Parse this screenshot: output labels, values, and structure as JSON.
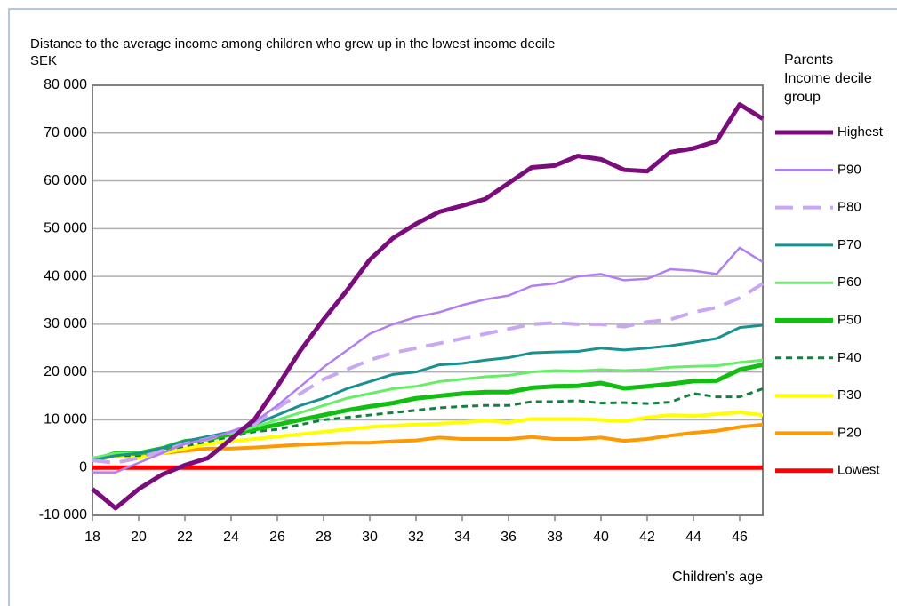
{
  "chart_data": {
    "type": "line",
    "title": "Distance to the average income among children who grew up in the lowest income decile",
    "y_label": "SEK",
    "x_label": "Children’s age",
    "legend_title": [
      "Parents",
      "Income decile",
      "group"
    ],
    "x": [
      18,
      19,
      20,
      21,
      22,
      23,
      24,
      25,
      26,
      27,
      28,
      29,
      30,
      31,
      32,
      33,
      34,
      35,
      36,
      37,
      38,
      39,
      40,
      41,
      42,
      43,
      44,
      45,
      46,
      47
    ],
    "xlim": [
      18,
      47
    ],
    "xticks": [
      18,
      20,
      22,
      24,
      26,
      28,
      30,
      32,
      34,
      36,
      38,
      40,
      42,
      44,
      46
    ],
    "ylim": [
      -10000,
      80000
    ],
    "yticks": [
      {
        "value": -10000,
        "label": "-10 000"
      },
      0,
      {
        "value": 10000,
        "label": "10 000"
      },
      {
        "value": 20000,
        "label": "20 000"
      },
      {
        "value": 30000,
        "label": "30 000"
      },
      {
        "value": 40000,
        "label": "40 000"
      },
      {
        "value": 50000,
        "label": "50 000"
      },
      {
        "value": 60000,
        "label": "60 000"
      },
      {
        "value": 70000,
        "label": "70 000"
      },
      {
        "value": 80000,
        "label": "80 000"
      }
    ],
    "grid": true,
    "legend": "right",
    "series": [
      {
        "name": "Highest",
        "color": "#7b0c7b",
        "linewidth": 5,
        "style": "solid",
        "values": [
          -4500,
          -8500,
          -4500,
          -1500,
          500,
          2000,
          6000,
          10000,
          17000,
          24500,
          31000,
          37000,
          43500,
          48000,
          51000,
          53500,
          54800,
          56200,
          59500,
          62800,
          63200,
          65200,
          64500,
          62300,
          62000,
          66000,
          66800,
          68300,
          76000,
          73000
        ]
      },
      {
        "name": "P90",
        "color": "#b07ef0",
        "linewidth": 2.5,
        "style": "solid",
        "values": [
          -1000,
          -1000,
          1000,
          3000,
          5000,
          6000,
          7500,
          9500,
          13000,
          17000,
          21000,
          24500,
          28000,
          30000,
          31500,
          32500,
          34000,
          35200,
          36000,
          38000,
          38500,
          40000,
          40500,
          39200,
          39500,
          41500,
          41200,
          40500,
          46000,
          43000
        ]
      },
      {
        "name": "P80",
        "color": "#c8a8f2",
        "linewidth": 4,
        "style": "dashed",
        "values": [
          1500,
          1000,
          2000,
          3500,
          5000,
          6000,
          7500,
          9000,
          12500,
          15500,
          18500,
          20500,
          22500,
          24000,
          25000,
          26000,
          27000,
          28000,
          29000,
          30000,
          30300,
          30000,
          30000,
          29500,
          30500,
          31000,
          32500,
          33500,
          35500,
          38500
        ]
      },
      {
        "name": "P70",
        "color": "#1a9090",
        "linewidth": 3,
        "style": "solid",
        "values": [
          1500,
          2500,
          3000,
          4000,
          5500,
          6500,
          7500,
          9000,
          11000,
          13000,
          14500,
          16500,
          18000,
          19500,
          20000,
          21500,
          21800,
          22500,
          23000,
          24000,
          24200,
          24300,
          25000,
          24600,
          25000,
          25500,
          26200,
          27000,
          29300,
          29800
        ]
      },
      {
        "name": "P60",
        "color": "#66ee66",
        "linewidth": 3,
        "style": "solid",
        "values": [
          2000,
          3000,
          3000,
          4000,
          5500,
          6500,
          7200,
          8500,
          10000,
          11500,
          13000,
          14500,
          15500,
          16500,
          17000,
          18000,
          18500,
          19000,
          19300,
          20000,
          20300,
          20200,
          20500,
          20300,
          20500,
          21000,
          21200,
          21300,
          22000,
          22500
        ]
      },
      {
        "name": "P50",
        "color": "#10bf10",
        "linewidth": 5,
        "style": "solid",
        "values": [
          1500,
          3000,
          3000,
          4000,
          5500,
          6000,
          7000,
          8000,
          9000,
          10000,
          11000,
          12000,
          12800,
          13500,
          14500,
          15000,
          15500,
          15800,
          15800,
          16700,
          17000,
          17100,
          17700,
          16600,
          17000,
          17500,
          18100,
          18200,
          20500,
          21500
        ]
      },
      {
        "name": "P40",
        "color": "#138040",
        "linewidth": 3,
        "style": "dotted",
        "values": [
          2000,
          2500,
          2500,
          3500,
          4500,
          5500,
          6500,
          7500,
          8000,
          9000,
          10000,
          10500,
          11000,
          11500,
          12000,
          12500,
          12800,
          13000,
          13000,
          13800,
          13800,
          14000,
          13500,
          13600,
          13400,
          13700,
          15500,
          14800,
          14800,
          16500
        ]
      },
      {
        "name": "P30",
        "color": "#ffff00",
        "linewidth": 4,
        "style": "solid",
        "values": [
          2000,
          2500,
          2000,
          3000,
          4000,
          5000,
          5500,
          6000,
          6500,
          7000,
          7500,
          8000,
          8500,
          8800,
          9000,
          9200,
          9500,
          9800,
          9500,
          10200,
          10200,
          10200,
          10000,
          9700,
          10500,
          11000,
          10800,
          11200,
          11600,
          11000
        ]
      },
      {
        "name": "P20",
        "color": "#ff9900",
        "linewidth": 4,
        "style": "solid",
        "values": [
          1500,
          2500,
          2500,
          3000,
          3500,
          4000,
          4000,
          4200,
          4500,
          4800,
          5000,
          5200,
          5200,
          5500,
          5700,
          6300,
          6000,
          6000,
          6000,
          6400,
          6000,
          6000,
          6300,
          5600,
          6000,
          6700,
          7300,
          7700,
          8500,
          9000
        ]
      },
      {
        "name": "Lowest",
        "color": "#ff0000",
        "linewidth": 5,
        "style": "solid",
        "values": [
          0,
          0,
          0,
          0,
          0,
          0,
          0,
          0,
          0,
          0,
          0,
          0,
          0,
          0,
          0,
          0,
          0,
          0,
          0,
          0,
          0,
          0,
          0,
          0,
          0,
          0,
          0,
          0,
          0,
          0
        ]
      }
    ]
  }
}
